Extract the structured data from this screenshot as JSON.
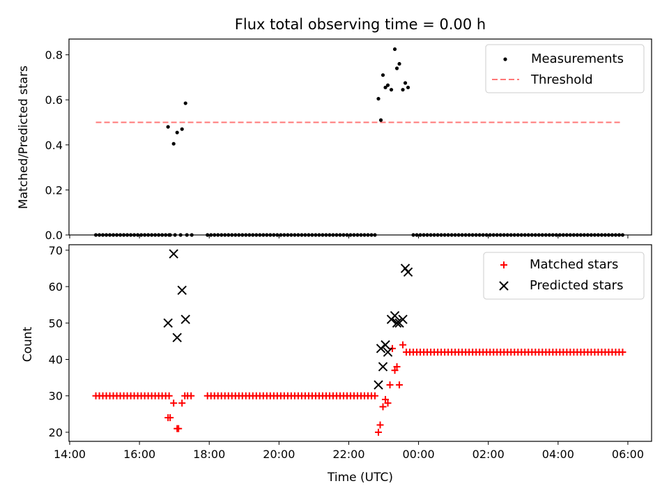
{
  "chart_data": {
    "title": "Flux total observing time = 0.00 h",
    "xlabel": "Time (UTC)",
    "x_ticks": [
      "14:00",
      "16:00",
      "18:00",
      "20:00",
      "22:00",
      "00:00",
      "02:00",
      "04:00",
      "06:00"
    ],
    "x_tick_hours": [
      14,
      16,
      18,
      20,
      22,
      24,
      26,
      28,
      30
    ],
    "xlim_hours": [
      13.98,
      30.68
    ],
    "panels": [
      {
        "type": "scatter",
        "ylabel": "Matched/Predicted stars",
        "ylim": [
          0,
          0.87
        ],
        "y_ticks": [
          "0.0",
          "0.2",
          "0.4",
          "0.6",
          "0.8"
        ],
        "y_tick_values": [
          0,
          0.2,
          0.4,
          0.6,
          0.8
        ],
        "legend": {
          "placement": "top-right",
          "entries": [
            "Measurements",
            "Threshold"
          ]
        },
        "colors": {
          "measurements": "#000000",
          "threshold": "#ff7777"
        },
        "threshold": {
          "value": 0.5,
          "x_start": 14.75,
          "x_end": 29.85
        },
        "zero_runs": [
          {
            "start": 14.75,
            "end": 16.85,
            "step": 0.1
          },
          {
            "start": 17.95,
            "end": 22.8,
            "step": 0.1
          },
          {
            "start": 23.85,
            "end": 29.9,
            "step": 0.1
          }
        ],
        "series": [
          {
            "x": [
              17.02,
              17.18,
              17.36,
              17.5,
              16.88
            ],
            "y": [
              0,
              0,
              0,
              0,
              0
            ]
          },
          {
            "x": [
              16.82,
              16.98,
              17.08,
              17.22,
              17.32,
              22.85,
              22.92,
              22.98,
              23.05,
              23.12,
              23.22,
              23.32,
              23.38,
              23.45,
              23.55,
              23.62,
              23.7
            ],
            "y": [
              0.48,
              0.405,
              0.455,
              0.47,
              0.585,
              0.605,
              0.51,
              0.71,
              0.655,
              0.665,
              0.645,
              0.825,
              0.74,
              0.76,
              0.645,
              0.675,
              0.655
            ]
          }
        ]
      },
      {
        "type": "scatter",
        "ylabel": "Count",
        "ylim": [
          17.5,
          71.5
        ],
        "y_ticks": [
          "20",
          "30",
          "40",
          "50",
          "60",
          "70"
        ],
        "y_tick_values": [
          20,
          30,
          40,
          50,
          60,
          70
        ],
        "legend": {
          "placement": "top-right",
          "entries": [
            "Matched stars",
            "Predicted stars"
          ]
        },
        "colors": {
          "matched": "#ff0000",
          "predicted": "#000000"
        },
        "matched_runs": [
          {
            "start": 14.75,
            "end": 16.85,
            "step": 0.1,
            "value": 30
          },
          {
            "start": 17.95,
            "end": 22.75,
            "step": 0.1,
            "value": 30
          },
          {
            "start": 23.85,
            "end": 29.85,
            "step": 0.1,
            "value": 42
          }
        ],
        "matched": {
          "x": [
            16.82,
            16.88,
            16.98,
            17.08,
            17.12,
            17.22,
            17.3,
            17.38,
            17.48,
            22.85,
            22.9,
            22.98,
            23.05,
            23.12,
            23.18,
            23.25,
            23.32,
            23.38,
            23.45,
            23.55,
            23.65,
            23.75
          ],
          "y": [
            24,
            24,
            28,
            21,
            21,
            28,
            30,
            30,
            30,
            20,
            22,
            27,
            29,
            28,
            33,
            43,
            37,
            38,
            33,
            44,
            42,
            42
          ]
        },
        "predicted": {
          "x": [
            16.82,
            16.98,
            17.08,
            17.22,
            17.32,
            22.85,
            22.92,
            22.98,
            23.05,
            23.12,
            23.22,
            23.32,
            23.38,
            23.45,
            23.55,
            23.62,
            23.7
          ],
          "y": [
            50,
            69,
            46,
            59,
            51,
            33,
            43,
            38,
            44,
            42,
            51,
            52,
            50,
            50,
            51,
            65,
            64
          ]
        }
      }
    ]
  }
}
